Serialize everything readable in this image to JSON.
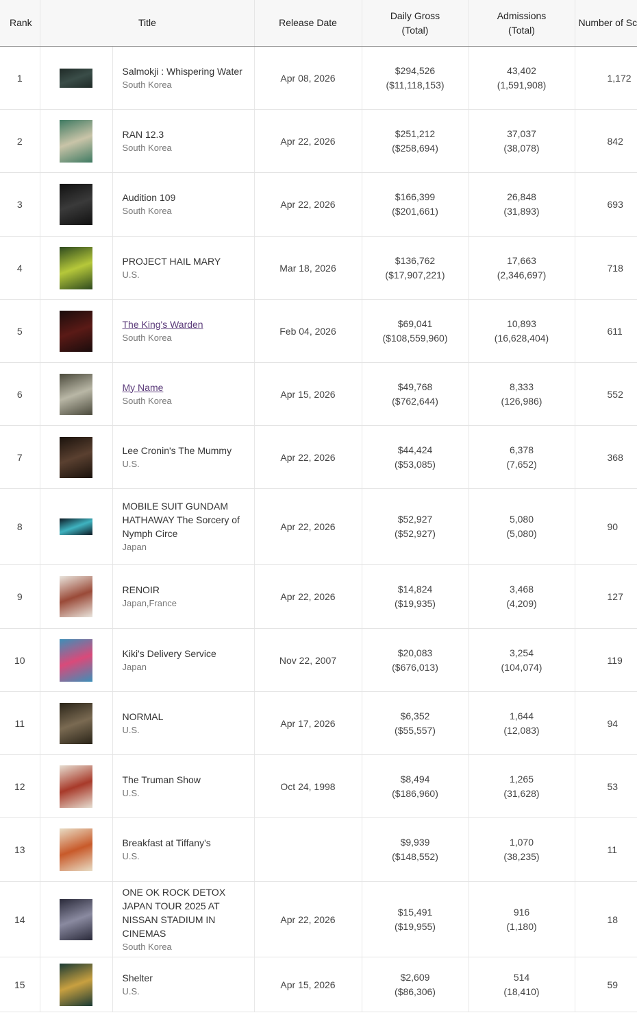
{
  "headers": {
    "rank": "Rank",
    "title": "Title",
    "release": "Release Date",
    "gross_1": "Daily Gross",
    "gross_2": "(Total)",
    "adm_1": "Admissions",
    "adm_2": "(Total)",
    "screens": "Number of Scr"
  },
  "colors": {
    "link": "#5b3b7a",
    "header_bg": "#f7f7f7"
  },
  "rows": [
    {
      "rank": "1",
      "title": "Salmokji : Whispering Water",
      "link": false,
      "country": "South Korea",
      "release": "Apr 08, 2026",
      "gross": "$294,526",
      "gross_total": "($11,118,153)",
      "adm": "43,402",
      "adm_total": "(1,591,908)",
      "screens": "1,172",
      "poster_colors": [
        "#1f2a27",
        "#3a4d48"
      ],
      "poster_h": 28
    },
    {
      "rank": "2",
      "title": "RAN 12.3",
      "link": false,
      "country": "South Korea",
      "release": "Apr 22, 2026",
      "gross": "$251,212",
      "gross_total": "($258,694)",
      "adm": "37,037",
      "adm_total": "(38,078)",
      "screens": "842",
      "poster_colors": [
        "#3f7a62",
        "#c9c4a8"
      ],
      "poster_h": 62
    },
    {
      "rank": "3",
      "title": "Audition 109",
      "link": false,
      "country": "South Korea",
      "release": "Apr 22, 2026",
      "gross": "$166,399",
      "gross_total": "($201,661)",
      "adm": "26,848",
      "adm_total": "(31,893)",
      "screens": "693",
      "poster_colors": [
        "#111111",
        "#3a3a3a"
      ],
      "poster_h": 60
    },
    {
      "rank": "4",
      "title": "PROJECT HAIL MARY",
      "link": false,
      "country": "U.S.",
      "release": "Mar 18, 2026",
      "gross": "$136,762",
      "gross_total": "($17,907,221)",
      "adm": "17,663",
      "adm_total": "(2,346,697)",
      "screens": "718",
      "poster_colors": [
        "#2e4a1e",
        "#b6c83a"
      ],
      "poster_h": 62
    },
    {
      "rank": "5",
      "title": "The King's Warden",
      "link": true,
      "country": "South Korea",
      "release": "Feb 04, 2026",
      "gross": "$69,041",
      "gross_total": "($108,559,960)",
      "adm": "10,893",
      "adm_total": "(16,628,404)",
      "screens": "611",
      "poster_colors": [
        "#1a0c0c",
        "#5a1a16"
      ],
      "poster_h": 60
    },
    {
      "rank": "6",
      "title": "My Name",
      "link": true,
      "country": "South Korea",
      "release": "Apr 15, 2026",
      "gross": "$49,768",
      "gross_total": "($762,644)",
      "adm": "8,333",
      "adm_total": "(126,986)",
      "screens": "552",
      "poster_colors": [
        "#4b4a3c",
        "#b9b7a6"
      ],
      "poster_h": 60
    },
    {
      "rank": "7",
      "title": "Lee Cronin's The Mummy",
      "link": false,
      "country": "U.S.",
      "release": "Apr 22, 2026",
      "gross": "$44,424",
      "gross_total": "($53,085)",
      "adm": "6,378",
      "adm_total": "(7,652)",
      "screens": "368",
      "poster_colors": [
        "#1a120c",
        "#5a4030"
      ],
      "poster_h": 60
    },
    {
      "rank": "8",
      "title": "MOBILE SUIT GUNDAM HATHAWAY The Sorcery of Nymph Circe",
      "link": false,
      "country": "Japan",
      "release": "Apr 22, 2026",
      "gross": "$52,927",
      "gross_total": "($52,927)",
      "adm": "5,080",
      "adm_total": "(5,080)",
      "screens": "90",
      "poster_colors": [
        "#0d1a24",
        "#3fb3c0"
      ],
      "poster_h": 24
    },
    {
      "rank": "9",
      "title": "RENOIR",
      "link": false,
      "country": "Japan,France",
      "release": "Apr 22, 2026",
      "gross": "$14,824",
      "gross_total": "($19,935)",
      "adm": "3,468",
      "adm_total": "(4,209)",
      "screens": "127",
      "poster_colors": [
        "#e9e4dc",
        "#9a4a38"
      ],
      "poster_h": 60
    },
    {
      "rank": "10",
      "title": "Kiki's Delivery Service",
      "link": false,
      "country": "Japan",
      "release": "Nov 22, 2007",
      "gross": "$20,083",
      "gross_total": "($676,013)",
      "adm": "3,254",
      "adm_total": "(104,074)",
      "screens": "119",
      "poster_colors": [
        "#3d8fb8",
        "#d94a7a"
      ],
      "poster_h": 62
    },
    {
      "rank": "11",
      "title": "NORMAL",
      "link": false,
      "country": "U.S.",
      "release": "Apr 17, 2026",
      "gross": "$6,352",
      "gross_total": "($55,557)",
      "adm": "1,644",
      "adm_total": "(12,083)",
      "screens": "94",
      "poster_colors": [
        "#2a2418",
        "#7a6a52"
      ],
      "poster_h": 60
    },
    {
      "rank": "12",
      "title": "The Truman Show",
      "link": false,
      "country": "U.S.",
      "release": "Oct 24, 1998",
      "gross": "$8,494",
      "gross_total": "($186,960)",
      "adm": "1,265",
      "adm_total": "(31,628)",
      "screens": "53",
      "poster_colors": [
        "#e6ddd0",
        "#a83a2a"
      ],
      "poster_h": 62
    },
    {
      "rank": "13",
      "title": "Breakfast at Tiffany's",
      "link": false,
      "country": "U.S.",
      "release": "",
      "gross": "$9,939",
      "gross_total": "($148,552)",
      "adm": "1,070",
      "adm_total": "(38,235)",
      "screens": "11",
      "poster_colors": [
        "#e8dcc4",
        "#c85a2a"
      ],
      "poster_h": 62
    },
    {
      "rank": "14",
      "title": "ONE OK ROCK DETOX JAPAN TOUR 2025 AT NISSAN STADIUM IN CINEMAS",
      "link": false,
      "country": "South Korea",
      "release": "Apr 22, 2026",
      "gross": "$15,491",
      "gross_total": "($19,955)",
      "adm": "916",
      "adm_total": "(1,180)",
      "screens": "18",
      "poster_colors": [
        "#2a2a3a",
        "#8a8aa0"
      ],
      "poster_h": 60
    },
    {
      "rank": "15",
      "title": "Shelter",
      "link": false,
      "country": "U.S.",
      "release": "Apr 15, 2026",
      "gross": "$2,609",
      "gross_total": "($86,306)",
      "adm": "514",
      "adm_total": "(18,410)",
      "screens": "59",
      "poster_colors": [
        "#1a3a34",
        "#c8a040"
      ],
      "poster_h": 62
    }
  ]
}
